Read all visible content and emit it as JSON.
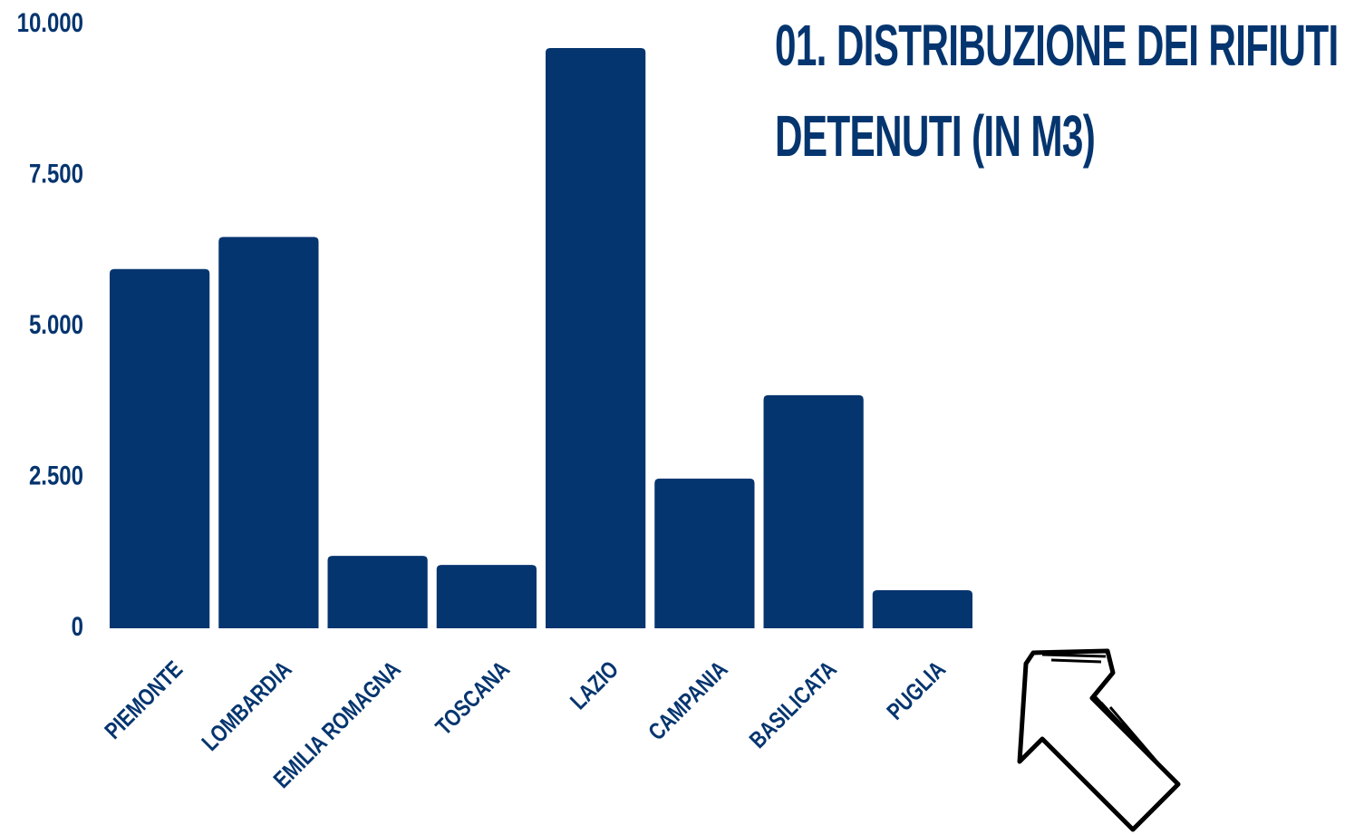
{
  "chart_data": {
    "type": "bar",
    "title": "01. DISTRIBUZIONE DEI RIFIUTI DETENUTI (IN M3)",
    "categories": [
      "PIEMONTE",
      "LOMBARDIA",
      "EMILIA ROMAGNA",
      "TOSCANA",
      "LAZIO",
      "CAMPANIA",
      "BASILICATA",
      "PUGLIA"
    ],
    "values": [
      5950,
      6480,
      1200,
      1050,
      9610,
      2480,
      3860,
      630
    ],
    "color": "#05356f",
    "ylim": [
      0,
      10000
    ],
    "yticks": [
      0,
      {
        "value": 2500,
        "label": "2.500"
      },
      {
        "value": 5000,
        "label": "5.000"
      },
      {
        "value": 7500,
        "label": "7.500"
      },
      {
        "value": 10000,
        "label": "10.000"
      }
    ],
    "grid": false
  }
}
